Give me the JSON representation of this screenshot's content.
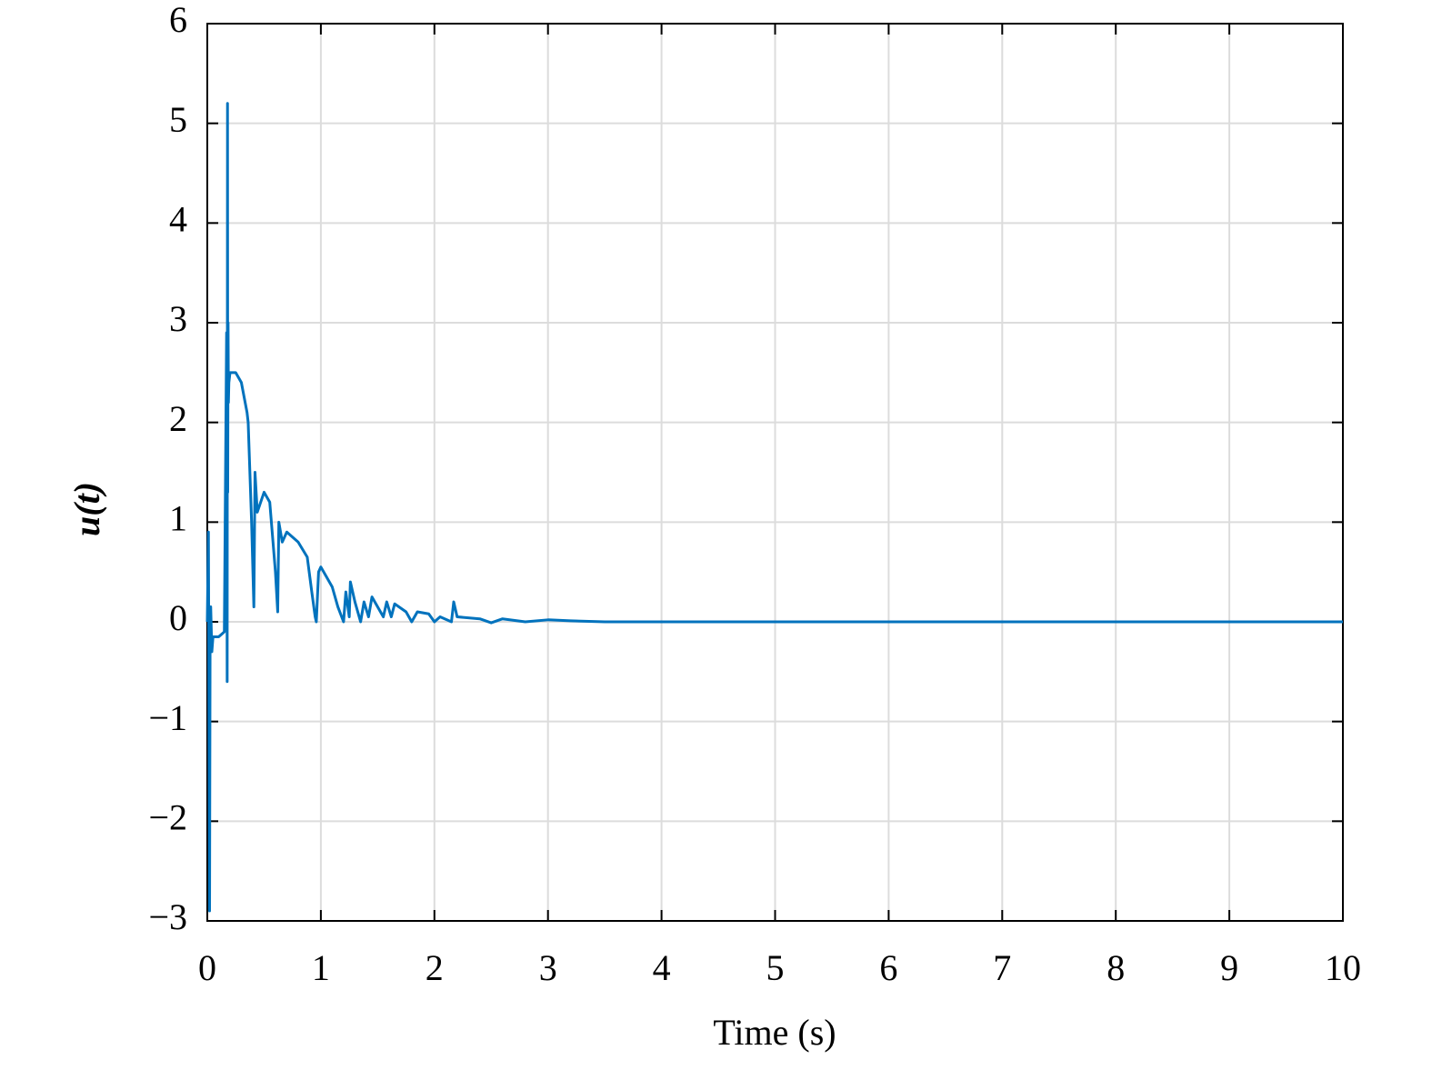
{
  "chart_data": {
    "type": "line",
    "xlabel": "Time (s)",
    "ylabel": "u(t)",
    "x": [
      0,
      0.01,
      0.02,
      0.025,
      0.03,
      0.04,
      0.05,
      0.1,
      0.15,
      0.17,
      0.175,
      0.178,
      0.18,
      0.183,
      0.186,
      0.19,
      0.2,
      0.25,
      0.3,
      0.35,
      0.36,
      0.39,
      0.41,
      0.42,
      0.44,
      0.5,
      0.55,
      0.6,
      0.62,
      0.63,
      0.66,
      0.7,
      0.8,
      0.88,
      0.92,
      0.95,
      0.96,
      0.98,
      1.0,
      1.05,
      1.1,
      1.15,
      1.2,
      1.22,
      1.25,
      1.26,
      1.3,
      1.35,
      1.38,
      1.42,
      1.45,
      1.55,
      1.58,
      1.62,
      1.65,
      1.75,
      1.8,
      1.85,
      1.95,
      2.0,
      2.05,
      2.15,
      2.17,
      2.2,
      2.4,
      2.5,
      2.6,
      2.8,
      3.0,
      3.2,
      3.5,
      4,
      10
    ],
    "series": [
      {
        "name": "u(t)",
        "color": "#0072bd",
        "values": [
          0,
          0.9,
          -2.9,
          0,
          0.15,
          -0.3,
          -0.15,
          -0.15,
          -0.1,
          2.9,
          -0.6,
          5.2,
          1.3,
          3.0,
          2.2,
          2.4,
          2.5,
          2.5,
          2.4,
          2.1,
          2.0,
          1.0,
          0.15,
          1.5,
          1.1,
          1.3,
          1.2,
          0.5,
          0.1,
          1.0,
          0.8,
          0.9,
          0.8,
          0.65,
          0.3,
          0.05,
          0,
          0.5,
          0.55,
          0.45,
          0.35,
          0.15,
          0,
          0.3,
          0.05,
          0.4,
          0.2,
          0,
          0.2,
          0.05,
          0.25,
          0.05,
          0.2,
          0.05,
          0.18,
          0.1,
          0,
          0.1,
          0.08,
          0,
          0.05,
          0,
          0.2,
          0.05,
          0.03,
          -0.01,
          0.03,
          0,
          0.02,
          0.01,
          0,
          0,
          0
        ]
      }
    ],
    "xlim": [
      0,
      10
    ],
    "xticks": [
      0,
      1,
      2,
      3,
      4,
      5,
      6,
      7,
      8,
      9,
      10
    ],
    "ylim": [
      -3,
      6
    ],
    "yticks": [
      {
        "value": -3,
        "label": "−3"
      },
      {
        "value": -2,
        "label": "−2"
      },
      {
        "value": -1,
        "label": "−1"
      },
      0,
      1,
      2,
      3,
      4,
      5,
      6
    ],
    "grid": true
  }
}
